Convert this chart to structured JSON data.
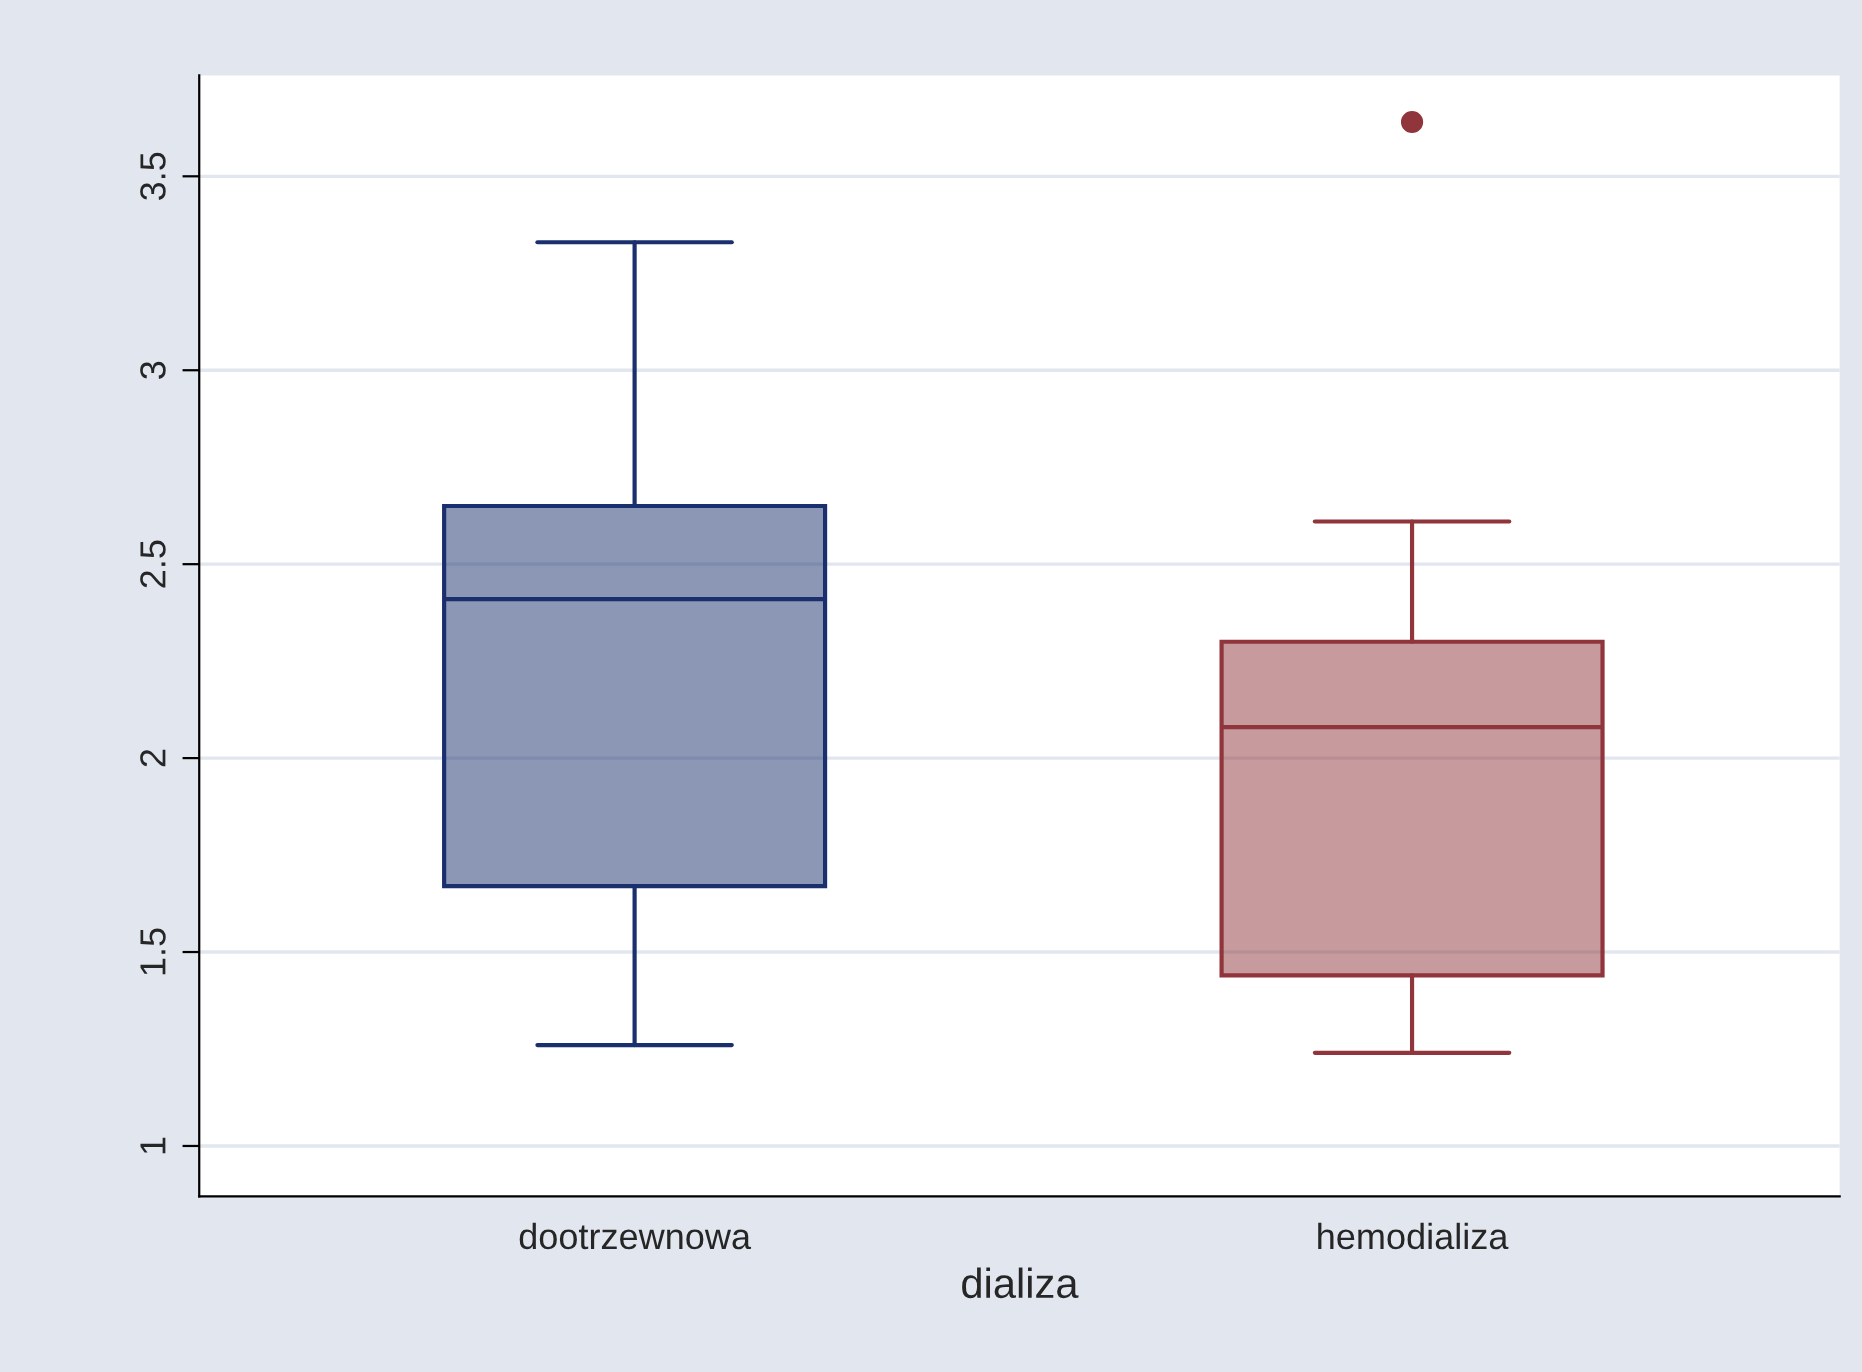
{
  "chart_data": {
    "type": "box",
    "xlabel": "dializa",
    "categories": [
      "dootrzewnowa",
      "hemodializa"
    ],
    "colors": [
      "#1a2f6e",
      "#90353b"
    ],
    "boxes": [
      {
        "low": 1.26,
        "q1": 1.67,
        "median": 2.41,
        "q3": 2.65,
        "high": 3.33
      },
      {
        "low": 1.24,
        "q1": 1.44,
        "median": 2.08,
        "q3": 2.3,
        "high": 2.61,
        "outliers": [
          3.64
        ]
      }
    ],
    "ylim": [
      0.87,
      3.76
    ],
    "yticks": [
      1,
      1.5,
      2,
      2.5,
      3,
      3.5
    ],
    "grid": "y",
    "legend": false
  }
}
